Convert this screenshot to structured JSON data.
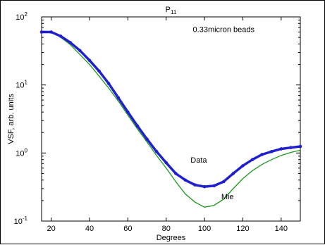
{
  "chart_data": {
    "type": "line",
    "title": "P",
    "title_subscript": "11",
    "xlabel": "Degrees",
    "ylabel": "VSF, arb. units",
    "xlim": [
      15,
      150
    ],
    "ylim": [
      0.1,
      100
    ],
    "yscale": "log",
    "grid": false,
    "x_ticks": [
      20,
      40,
      60,
      80,
      100,
      120,
      140
    ],
    "y_ticks": [
      {
        "value": 0.1,
        "base": "10",
        "exp": "-1"
      },
      {
        "value": 1,
        "base": "10",
        "exp": "0"
      },
      {
        "value": 10,
        "base": "10",
        "exp": "1"
      },
      {
        "value": 100,
        "base": "10",
        "exp": "2"
      }
    ],
    "annotations": [
      {
        "text": "0.33micron beads",
        "x": 110,
        "y": 60
      },
      {
        "text": "Data",
        "x": 97,
        "y": 0.72
      },
      {
        "text": "Mie",
        "x": 112,
        "y": 0.21
      }
    ],
    "series": [
      {
        "name": "Data",
        "color": "#1f1fd0",
        "style": "dots",
        "x": [
          15,
          20,
          25,
          30,
          35,
          40,
          45,
          50,
          55,
          60,
          65,
          70,
          75,
          80,
          85,
          90,
          95,
          100,
          105,
          110,
          115,
          120,
          125,
          130,
          135,
          140,
          145,
          150
        ],
        "y": [
          60,
          60,
          52,
          42,
          32,
          23,
          16,
          10.5,
          6.5,
          4.0,
          2.5,
          1.6,
          1.05,
          0.72,
          0.5,
          0.4,
          0.34,
          0.32,
          0.33,
          0.38,
          0.5,
          0.65,
          0.8,
          0.95,
          1.05,
          1.15,
          1.2,
          1.25
        ]
      },
      {
        "name": "Mie",
        "color": "#1a9a1a",
        "style": "line",
        "x": [
          15,
          20,
          25,
          30,
          35,
          40,
          45,
          50,
          55,
          60,
          65,
          70,
          75,
          80,
          85,
          90,
          95,
          100,
          105,
          110,
          115,
          120,
          125,
          130,
          135,
          140,
          145,
          150
        ],
        "y": [
          62,
          60,
          50,
          39,
          28,
          20,
          13.5,
          9,
          5.8,
          3.6,
          2.25,
          1.45,
          0.92,
          0.6,
          0.38,
          0.25,
          0.19,
          0.16,
          0.17,
          0.21,
          0.3,
          0.42,
          0.55,
          0.68,
          0.8,
          0.92,
          1.02,
          1.1
        ]
      }
    ]
  }
}
